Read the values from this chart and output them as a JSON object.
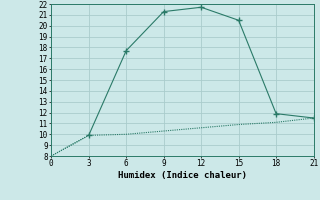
{
  "xlabel": "Humidex (Indice chaleur)",
  "line1_x": [
    0,
    3,
    6,
    9,
    12,
    15,
    18,
    21
  ],
  "line1_y": [
    8,
    9.9,
    17.7,
    21.3,
    21.7,
    20.5,
    11.9,
    11.5
  ],
  "line2_x": [
    0,
    3,
    6,
    9,
    12,
    15,
    18,
    21
  ],
  "line2_y": [
    8,
    9.9,
    10.0,
    10.3,
    10.6,
    10.9,
    11.1,
    11.5
  ],
  "line_color": "#2a7a68",
  "bg_color": "#cce8e8",
  "grid_color": "#aacccc",
  "xlim": [
    0,
    21
  ],
  "ylim": [
    8,
    22
  ],
  "xticks": [
    0,
    3,
    6,
    9,
    12,
    15,
    18,
    21
  ],
  "yticks": [
    8,
    9,
    10,
    11,
    12,
    13,
    14,
    15,
    16,
    17,
    18,
    19,
    20,
    21,
    22
  ]
}
